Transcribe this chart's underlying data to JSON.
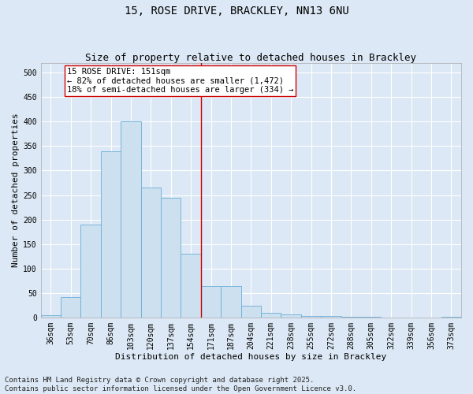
{
  "title": "15, ROSE DRIVE, BRACKLEY, NN13 6NU",
  "subtitle": "Size of property relative to detached houses in Brackley",
  "xlabel": "Distribution of detached houses by size in Brackley",
  "ylabel": "Number of detached properties",
  "categories": [
    "36sqm",
    "53sqm",
    "70sqm",
    "86sqm",
    "103sqm",
    "120sqm",
    "137sqm",
    "154sqm",
    "171sqm",
    "187sqm",
    "204sqm",
    "221sqm",
    "238sqm",
    "255sqm",
    "272sqm",
    "288sqm",
    "305sqm",
    "322sqm",
    "339sqm",
    "356sqm",
    "373sqm"
  ],
  "values": [
    5,
    42,
    190,
    340,
    400,
    265,
    245,
    130,
    65,
    65,
    25,
    10,
    7,
    3,
    3,
    2,
    2,
    0,
    0,
    0,
    2
  ],
  "bar_color": "#cce0f0",
  "bar_edge_color": "#6aaed6",
  "vline_x": 7.5,
  "vline_color": "#cc0000",
  "annotation_text": "15 ROSE DRIVE: 151sqm\n← 82% of detached houses are smaller (1,472)\n18% of semi-detached houses are larger (334) →",
  "annotation_box_color": "#ffffff",
  "annotation_box_edge_color": "#cc0000",
  "footnote": "Contains HM Land Registry data © Crown copyright and database right 2025.\nContains public sector information licensed under the Open Government Licence v3.0.",
  "ylim": [
    0,
    520
  ],
  "yticks": [
    0,
    50,
    100,
    150,
    200,
    250,
    300,
    350,
    400,
    450,
    500
  ],
  "background_color": "#dce8f5",
  "grid_color": "#ffffff",
  "title_fontsize": 10,
  "subtitle_fontsize": 9,
  "xlabel_fontsize": 8,
  "ylabel_fontsize": 8,
  "tick_fontsize": 7,
  "annotation_fontsize": 7.5,
  "footnote_fontsize": 6.5
}
